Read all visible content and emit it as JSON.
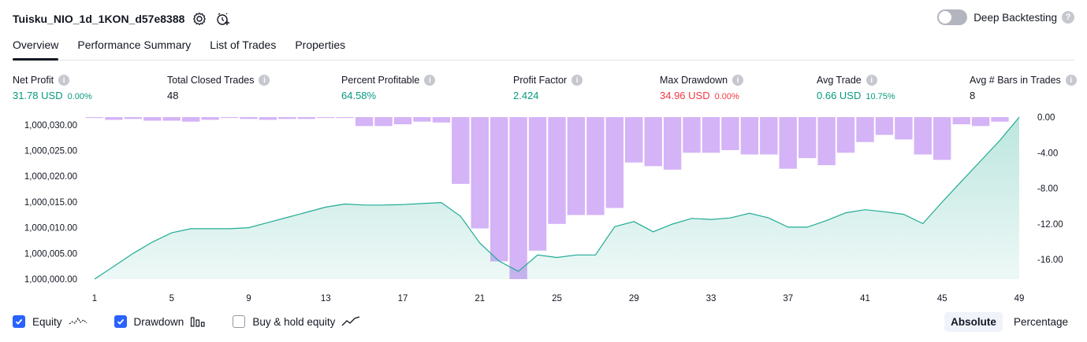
{
  "header": {
    "title": "Tuisku_NIO_1d_1KON_d57e8388",
    "deep_backtesting_label": "Deep Backtesting"
  },
  "tabs": [
    {
      "label": "Overview"
    },
    {
      "label": "Performance Summary"
    },
    {
      "label": "List of Trades"
    },
    {
      "label": "Properties"
    }
  ],
  "metrics": [
    {
      "label": "Net Profit",
      "value": "31.78 USD",
      "percent": "0.00%"
    },
    {
      "label": "Total Closed Trades",
      "value": "48"
    },
    {
      "label": "Percent Profitable",
      "value": "64.58%"
    },
    {
      "label": "Profit Factor",
      "value": "2.424"
    },
    {
      "label": "Max Drawdown",
      "value": "34.96 USD",
      "percent": "0.00%"
    },
    {
      "label": "Avg Trade",
      "value": "0.66 USD",
      "percent": "10.75%"
    },
    {
      "label": "Avg # Bars in Trades",
      "value": "8"
    }
  ],
  "colors": {
    "equity_line": "#22ab94",
    "drawdown_bar": "#d4b3f7",
    "profit": "#089981",
    "loss": "#f23645",
    "checkbox": "#2962ff"
  },
  "chart_data": {
    "type": "bar",
    "x_ticks": [
      "1",
      "5",
      "9",
      "13",
      "17",
      "21",
      "25",
      "29",
      "33",
      "37",
      "41",
      "45",
      "49"
    ],
    "left_axis": {
      "ticks": [
        "1,000,000.00",
        "1,000,005.00",
        "1,000,010.00",
        "1,000,015.00",
        "1,000,020.00",
        "1,000,025.00",
        "1,000,030.00"
      ],
      "range": [
        1000000,
        1000031.5
      ]
    },
    "right_axis": {
      "ticks": [
        "0.00",
        "-4.00",
        "-8.00",
        "-12.00",
        "-16.00"
      ],
      "range": [
        -18.2,
        0
      ]
    },
    "series": [
      {
        "name": "Equity",
        "kind": "area",
        "x": [
          1,
          2,
          3,
          4,
          5,
          6,
          7,
          8,
          9,
          10,
          11,
          12,
          13,
          14,
          15,
          16,
          17,
          18,
          19,
          20,
          21,
          22,
          23,
          24,
          25,
          26,
          27,
          28,
          29,
          30,
          31,
          32,
          33,
          34,
          35,
          36,
          37,
          38,
          39,
          40,
          41,
          42,
          43,
          44,
          45,
          46,
          47,
          48,
          49
        ],
        "values": [
          1000000.0,
          1000002.5,
          1000005.0,
          1000007.2,
          1000009.0,
          1000009.8,
          1000009.8,
          1000009.8,
          1000010.0,
          1000011.0,
          1000012.0,
          1000013.0,
          1000014.0,
          1000014.6,
          1000014.4,
          1000014.4,
          1000014.5,
          1000014.7,
          1000014.9,
          1000012.2,
          1000007.0,
          1000003.5,
          1000001.5,
          1000004.7,
          1000004.2,
          1000004.7,
          1000004.7,
          1000010.2,
          1000011.2,
          1000009.2,
          1000010.7,
          1000011.8,
          1000011.6,
          1000011.9,
          1000012.8,
          1000011.9,
          1000010.1,
          1000010.1,
          1000011.4,
          1000012.9,
          1000013.5,
          1000013.1,
          1000012.6,
          1000010.8,
          1000015.0,
          1000019.0,
          1000023.0,
          1000027.0,
          1000031.5
        ]
      },
      {
        "name": "Drawdown",
        "kind": "bar",
        "x": [
          1,
          2,
          3,
          4,
          5,
          6,
          7,
          8,
          9,
          10,
          11,
          12,
          13,
          14,
          15,
          16,
          17,
          18,
          19,
          20,
          21,
          22,
          23,
          24,
          25,
          26,
          27,
          28,
          29,
          30,
          31,
          32,
          33,
          34,
          35,
          36,
          37,
          38,
          39,
          40,
          41,
          42,
          43,
          44,
          45,
          46,
          47,
          48,
          49
        ],
        "values": [
          -0.1,
          -0.3,
          -0.2,
          -0.4,
          -0.4,
          -0.5,
          -0.3,
          -0.1,
          -0.2,
          -0.3,
          -0.2,
          -0.2,
          -0.1,
          -0.1,
          -1.0,
          -1.0,
          -0.8,
          -0.5,
          -0.6,
          -7.5,
          -12.5,
          -16.2,
          -18.2,
          -15.0,
          -12.0,
          -11.0,
          -11.0,
          -10.2,
          -5.1,
          -5.5,
          -5.9,
          -4.0,
          -4.0,
          -3.7,
          -4.2,
          -4.2,
          -5.8,
          -4.6,
          -5.4,
          -4.0,
          -2.8,
          -2.0,
          -2.5,
          -4.2,
          -4.8,
          -0.8,
          -1.0,
          -0.5,
          0.0
        ]
      }
    ],
    "legend": [
      {
        "label": "Equity",
        "checked": true
      },
      {
        "label": "Drawdown",
        "checked": true
      },
      {
        "label": "Buy & hold equity",
        "checked": false
      }
    ]
  },
  "scale": {
    "absolute_label": "Absolute",
    "percentage_label": "Percentage"
  }
}
